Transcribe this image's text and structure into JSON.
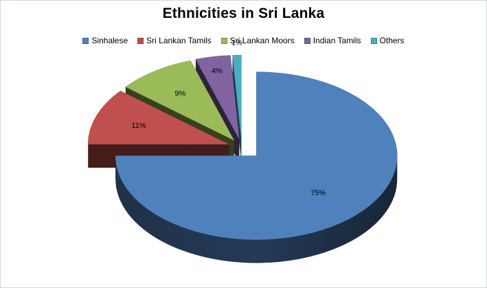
{
  "chart_data": {
    "type": "pie",
    "title": "Ethnicities in Sri Lanka",
    "exploded": true,
    "three_d": true,
    "legend_position": "top",
    "slices": [
      {
        "name": "Sinhalese",
        "value": 75,
        "label": "75%",
        "color": "#4f81bd"
      },
      {
        "name": "Sri Lankan Tamils",
        "value": 11,
        "label": "11%",
        "color": "#c0504d"
      },
      {
        "name": "Sri Lankan Moors",
        "value": 9,
        "label": "9%",
        "color": "#9bbb59"
      },
      {
        "name": "Indian Tamils",
        "value": 4,
        "label": "4%",
        "color": "#8064a2"
      },
      {
        "name": "Others",
        "value": 1,
        "label": "1%",
        "color": "#4bacc6"
      }
    ]
  }
}
